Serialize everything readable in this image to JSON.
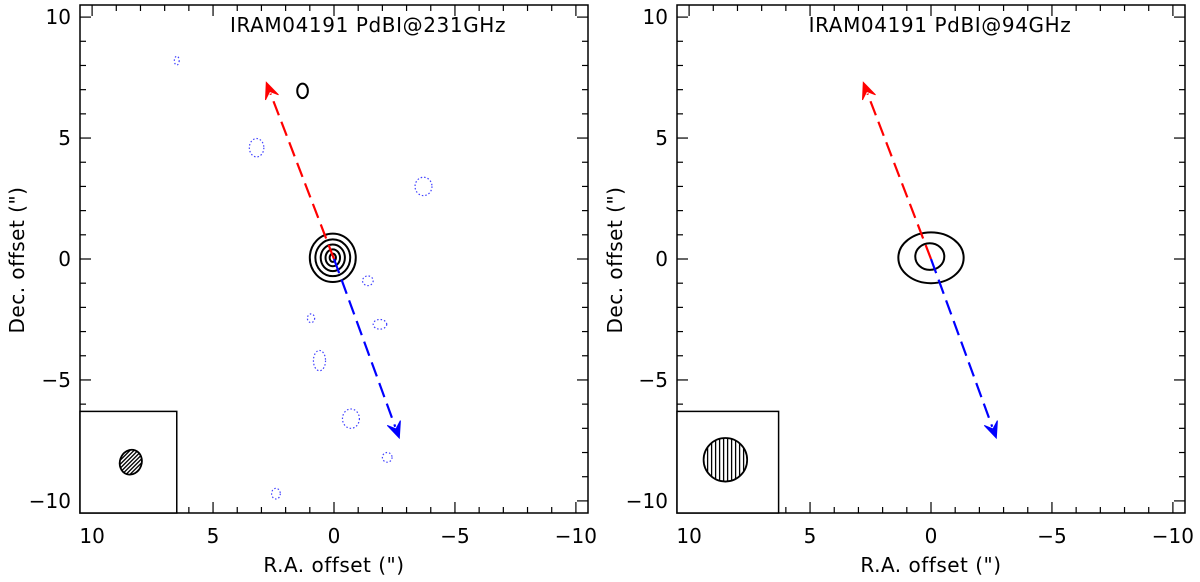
{
  "chart_data": [
    {
      "type": "contour",
      "title": "IRAM04191  PdBI@231GHz",
      "xlabel": "R.A. offset (\")",
      "ylabel": "Dec. offset (\")",
      "xlim": [
        10.5,
        -10.5
      ],
      "ylim": [
        -10.5,
        10.5
      ],
      "xticks": [
        10,
        5,
        0,
        -5,
        -10
      ],
      "yticks": [
        -10,
        -5,
        0,
        5,
        10
      ],
      "xtick_labels": [
        "10",
        "5",
        "0",
        "−5",
        "−10"
      ],
      "ytick_labels": [
        "−10",
        "−5",
        "0",
        "5",
        "10"
      ],
      "source_peak": [
        0.0,
        0.0
      ],
      "positive_contours": [
        {
          "x": 0.05,
          "y": 0.05,
          "rx": 0.95,
          "ry": 1.0
        },
        {
          "x": 0.05,
          "y": 0.05,
          "rx": 0.72,
          "ry": 0.76
        },
        {
          "x": 0.05,
          "y": 0.05,
          "rx": 0.5,
          "ry": 0.55
        },
        {
          "x": 0.05,
          "y": 0.05,
          "rx": 0.3,
          "ry": 0.35
        },
        {
          "x": 0.05,
          "y": 0.05,
          "rx": 0.13,
          "ry": 0.17
        },
        {
          "x": 1.3,
          "y": 6.95,
          "rx": 0.22,
          "ry": 0.3
        }
      ],
      "negative_contours": [
        {
          "x": 6.5,
          "y": 8.2,
          "rx": 0.1,
          "ry": 0.18
        },
        {
          "x": 3.2,
          "y": 4.6,
          "rx": 0.3,
          "ry": 0.38
        },
        {
          "x": -3.7,
          "y": 3.0,
          "rx": 0.35,
          "ry": 0.38
        },
        {
          "x": -1.4,
          "y": -0.9,
          "rx": 0.22,
          "ry": 0.2
        },
        {
          "x": 0.95,
          "y": -2.45,
          "rx": 0.15,
          "ry": 0.18
        },
        {
          "x": -1.9,
          "y": -2.7,
          "rx": 0.28,
          "ry": 0.2
        },
        {
          "x": 0.6,
          "y": -4.2,
          "rx": 0.25,
          "ry": 0.42
        },
        {
          "x": -0.7,
          "y": -6.6,
          "rx": 0.35,
          "ry": 0.4
        },
        {
          "x": -2.2,
          "y": -8.2,
          "rx": 0.2,
          "ry": 0.2
        },
        {
          "x": 2.4,
          "y": -9.7,
          "rx": 0.18,
          "ry": 0.22
        }
      ],
      "outflow": {
        "red_end": [
          2.8,
          7.3
        ],
        "blue_end": [
          -2.7,
          -7.4
        ],
        "red_color": "#ff0000",
        "blue_color": "#0000ff"
      },
      "beam": {
        "x": 8.4,
        "y": -8.4,
        "rx": 0.45,
        "ry": 0.52,
        "angle": 20,
        "hatch": "diagonal"
      },
      "beam_box": {
        "x0": 10.5,
        "x1": 6.5,
        "y0": -10.5,
        "y1": -6.3
      },
      "negative_color": "#4040ff",
      "positive_color": "#000000"
    },
    {
      "type": "contour",
      "title": "IRAM04191  PdBI@94GHz",
      "xlabel": "R.A. offset (\")",
      "ylabel": "Dec. offset (\")",
      "xlim": [
        10.5,
        -10.5
      ],
      "ylim": [
        -10.5,
        10.5
      ],
      "xticks": [
        10,
        5,
        0,
        -5,
        -10
      ],
      "yticks": [
        -10,
        -5,
        0,
        5,
        10
      ],
      "xtick_labels": [
        "10",
        "5",
        "0",
        "−5",
        "−10"
      ],
      "ytick_labels": [
        "−10",
        "−5",
        "0",
        "5",
        "10"
      ],
      "source_peak": [
        0.0,
        0.0
      ],
      "positive_contours": [
        {
          "x": 0.0,
          "y": 0.05,
          "rx": 1.35,
          "ry": 1.05
        },
        {
          "x": 0.05,
          "y": 0.1,
          "rx": 0.6,
          "ry": 0.55
        }
      ],
      "negative_contours": [],
      "outflow": {
        "red_end": [
          2.8,
          7.3
        ],
        "blue_end": [
          -2.7,
          -7.4
        ],
        "red_color": "#ff0000",
        "blue_color": "#0000ff"
      },
      "beam": {
        "x": 8.5,
        "y": -8.3,
        "rx": 0.9,
        "ry": 0.9,
        "angle": 0,
        "hatch": "vertical"
      },
      "beam_box": {
        "x0": 10.5,
        "x1": 6.3,
        "y0": -10.5,
        "y1": -6.3
      },
      "negative_color": "#4040ff",
      "positive_color": "#000000"
    }
  ]
}
